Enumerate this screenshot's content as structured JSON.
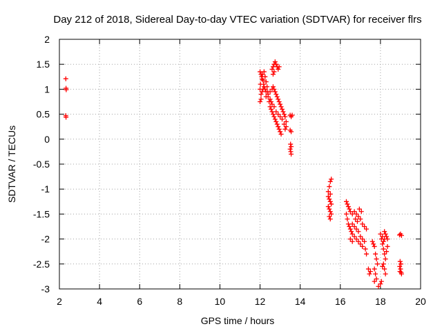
{
  "chart_data": {
    "type": "scatter",
    "title": "Day 212 of 2018, Sidereal Day-to-day VTEC variation (SDTVAR) for receiver flrs",
    "xlabel": "GPS time / hours",
    "ylabel": "SDTVAR / TECUs",
    "xlim": [
      2,
      20
    ],
    "ylim": [
      -3,
      2
    ],
    "x_ticks": [
      2,
      4,
      6,
      8,
      10,
      12,
      14,
      16,
      18,
      20
    ],
    "y_ticks": [
      2,
      1.5,
      1,
      0.5,
      0,
      -0.5,
      -1,
      -1.5,
      -2,
      -2.5,
      -3
    ],
    "x_tick_labels": [
      "2",
      "4",
      "6",
      "8",
      "10",
      "12",
      "14",
      "16",
      "18",
      "20"
    ],
    "y_tick_labels": [
      "2",
      "1.5",
      "1",
      "0.5",
      "0",
      "-0.5",
      "-1",
      "-1.5",
      "-2",
      "-2.5",
      "-3"
    ],
    "grid": true,
    "marker": "plus",
    "series_color": "#ff0000",
    "series": [
      {
        "name": "SDTVAR",
        "points": [
          [
            2.32,
            1.21
          ],
          [
            2.33,
            1.02
          ],
          [
            2.34,
            0.99
          ],
          [
            2.32,
            0.47
          ],
          [
            2.33,
            0.44
          ],
          [
            12.0,
            1.35
          ],
          [
            12.05,
            1.3
          ],
          [
            12.08,
            1.25
          ],
          [
            12.1,
            1.2
          ],
          [
            12.15,
            1.18
          ],
          [
            12.18,
            1.1
          ],
          [
            12.2,
            1.05
          ],
          [
            12.25,
            1.0
          ],
          [
            12.3,
            0.95
          ],
          [
            12.3,
            0.85
          ],
          [
            12.0,
            0.75
          ],
          [
            12.05,
            0.8
          ],
          [
            12.05,
            0.9
          ],
          [
            12.1,
            0.95
          ],
          [
            12.15,
            1.0
          ],
          [
            12.0,
            1.0
          ],
          [
            12.02,
            1.1
          ],
          [
            12.12,
            1.3
          ],
          [
            12.2,
            1.35
          ],
          [
            12.25,
            1.25
          ],
          [
            12.3,
            1.15
          ],
          [
            12.35,
            1.05
          ],
          [
            12.38,
            0.95
          ],
          [
            12.4,
            0.85
          ],
          [
            12.45,
            0.75
          ],
          [
            12.5,
            0.65
          ],
          [
            12.55,
            0.6
          ],
          [
            12.6,
            0.55
          ],
          [
            12.65,
            0.5
          ],
          [
            12.7,
            0.45
          ],
          [
            12.75,
            0.4
          ],
          [
            12.8,
            0.35
          ],
          [
            12.85,
            0.3
          ],
          [
            12.9,
            0.25
          ],
          [
            12.95,
            0.2
          ],
          [
            13.0,
            0.15
          ],
          [
            13.05,
            0.1
          ],
          [
            12.4,
            0.9
          ],
          [
            12.5,
            0.95
          ],
          [
            12.6,
            1.0
          ],
          [
            12.65,
            1.05
          ],
          [
            12.7,
            1.0
          ],
          [
            12.75,
            0.95
          ],
          [
            12.8,
            0.9
          ],
          [
            12.85,
            0.85
          ],
          [
            12.9,
            0.8
          ],
          [
            12.95,
            0.75
          ],
          [
            13.0,
            0.7
          ],
          [
            13.05,
            0.65
          ],
          [
            13.1,
            0.6
          ],
          [
            13.15,
            0.55
          ],
          [
            13.2,
            0.5
          ],
          [
            13.25,
            0.45
          ],
          [
            13.3,
            0.35
          ],
          [
            13.3,
            0.25
          ],
          [
            12.6,
            0.7
          ],
          [
            12.7,
            0.65
          ],
          [
            12.8,
            0.55
          ],
          [
            12.9,
            0.5
          ],
          [
            13.0,
            0.45
          ],
          [
            13.1,
            0.4
          ],
          [
            13.2,
            0.3
          ],
          [
            13.25,
            0.2
          ],
          [
            12.5,
            0.8
          ],
          [
            12.55,
            0.75
          ],
          [
            12.6,
            1.4
          ],
          [
            12.65,
            1.45
          ],
          [
            12.7,
            1.5
          ],
          [
            12.75,
            1.55
          ],
          [
            12.8,
            1.5
          ],
          [
            12.85,
            1.45
          ],
          [
            12.9,
            1.4
          ],
          [
            12.95,
            1.45
          ],
          [
            12.7,
            1.35
          ],
          [
            12.65,
            1.3
          ],
          [
            13.5,
            0.48
          ],
          [
            13.55,
            0.45
          ],
          [
            13.6,
            0.48
          ],
          [
            13.5,
            0.18
          ],
          [
            13.55,
            0.15
          ],
          [
            13.52,
            -0.1
          ],
          [
            13.55,
            -0.15
          ],
          [
            13.5,
            -0.2
          ],
          [
            13.53,
            -0.25
          ],
          [
            13.55,
            -0.3
          ],
          [
            15.4,
            -1.05
          ],
          [
            15.45,
            -0.95
          ],
          [
            15.5,
            -0.85
          ],
          [
            15.55,
            -0.8
          ],
          [
            15.4,
            -1.15
          ],
          [
            15.45,
            -1.2
          ],
          [
            15.5,
            -1.25
          ],
          [
            15.55,
            -1.3
          ],
          [
            15.4,
            -1.35
          ],
          [
            15.45,
            -1.4
          ],
          [
            15.5,
            -1.45
          ],
          [
            15.55,
            -1.5
          ],
          [
            15.45,
            -1.55
          ],
          [
            15.5,
            -1.6
          ],
          [
            15.5,
            -1.1
          ],
          [
            16.3,
            -1.25
          ],
          [
            16.35,
            -1.3
          ],
          [
            16.4,
            -1.35
          ],
          [
            16.45,
            -1.4
          ],
          [
            16.5,
            -1.45
          ],
          [
            16.3,
            -1.5
          ],
          [
            16.35,
            -1.6
          ],
          [
            16.4,
            -1.7
          ],
          [
            16.45,
            -1.75
          ],
          [
            16.5,
            -1.8
          ],
          [
            16.55,
            -1.85
          ],
          [
            16.6,
            -1.9
          ],
          [
            16.7,
            -1.95
          ],
          [
            16.8,
            -2.0
          ],
          [
            16.9,
            -2.05
          ],
          [
            17.0,
            -2.1
          ],
          [
            17.1,
            -2.15
          ],
          [
            16.6,
            -1.5
          ],
          [
            16.7,
            -1.45
          ],
          [
            16.8,
            -1.5
          ],
          [
            16.9,
            -1.55
          ],
          [
            17.0,
            -1.6
          ],
          [
            17.1,
            -1.7
          ],
          [
            17.2,
            -1.75
          ],
          [
            17.3,
            -1.8
          ],
          [
            16.6,
            -1.7
          ],
          [
            16.7,
            -1.75
          ],
          [
            16.8,
            -1.8
          ],
          [
            16.9,
            -1.85
          ],
          [
            17.0,
            -1.95
          ],
          [
            17.1,
            -2.0
          ],
          [
            17.2,
            -2.05
          ],
          [
            17.25,
            -2.2
          ],
          [
            17.3,
            -2.3
          ],
          [
            16.5,
            -2.0
          ],
          [
            16.6,
            -2.05
          ],
          [
            16.75,
            -1.6
          ],
          [
            16.85,
            -1.65
          ],
          [
            16.95,
            -1.4
          ],
          [
            17.05,
            -1.45
          ],
          [
            17.4,
            -2.6
          ],
          [
            17.45,
            -2.7
          ],
          [
            17.5,
            -2.65
          ],
          [
            17.6,
            -2.05
          ],
          [
            17.65,
            -2.1
          ],
          [
            17.7,
            -2.15
          ],
          [
            17.75,
            -2.3
          ],
          [
            17.8,
            -2.4
          ],
          [
            17.85,
            -2.5
          ],
          [
            17.7,
            -2.6
          ],
          [
            17.75,
            -2.7
          ],
          [
            17.8,
            -2.8
          ],
          [
            17.7,
            -2.85
          ],
          [
            17.9,
            -2.95
          ],
          [
            18.0,
            -2.9
          ],
          [
            18.05,
            -2.85
          ],
          [
            18.0,
            -1.9
          ],
          [
            18.05,
            -2.0
          ],
          [
            18.1,
            -2.1
          ],
          [
            18.15,
            -2.2
          ],
          [
            18.2,
            -2.3
          ],
          [
            18.25,
            -2.4
          ],
          [
            18.1,
            -1.95
          ],
          [
            18.2,
            -1.85
          ],
          [
            18.25,
            -1.9
          ],
          [
            18.15,
            -2.5
          ],
          [
            18.2,
            -2.6
          ],
          [
            18.25,
            -2.7
          ],
          [
            18.1,
            -2.55
          ],
          [
            18.3,
            -1.95
          ],
          [
            18.35,
            -2.0
          ],
          [
            18.3,
            -2.25
          ],
          [
            18.35,
            -2.15
          ],
          [
            18.2,
            -2.0
          ],
          [
            18.15,
            -2.05
          ],
          [
            18.95,
            -1.92
          ],
          [
            19.0,
            -1.9
          ],
          [
            19.05,
            -1.93
          ],
          [
            18.98,
            -2.45
          ],
          [
            19.02,
            -2.5
          ],
          [
            19.0,
            -2.6
          ],
          [
            18.97,
            -2.65
          ],
          [
            19.03,
            -2.67
          ],
          [
            19.05,
            -2.7
          ],
          [
            18.96,
            -2.55
          ]
        ]
      }
    ]
  }
}
